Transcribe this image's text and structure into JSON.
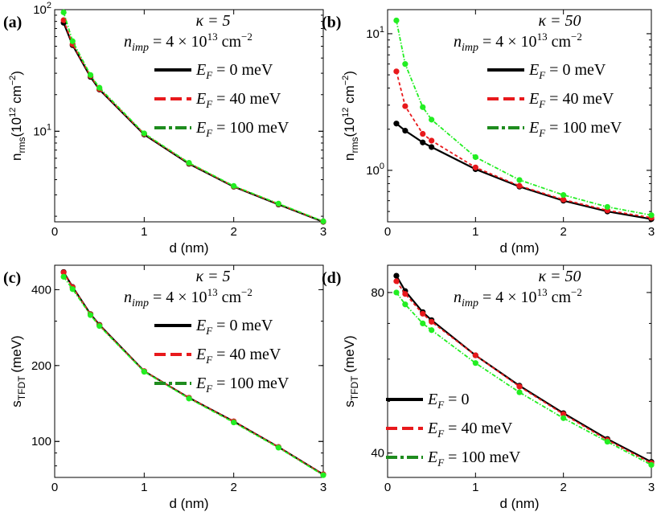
{
  "chart_data": [
    {
      "panel": "(a)",
      "type": "line",
      "kappa": "κ = 5",
      "nimp": "4 × 10",
      "nimp_exp": "13",
      "nimp_unit": "cm",
      "nimp_unit_exp": "−2",
      "xlabel": "d  (nm)",
      "ylabel_main": "n",
      "ylabel_sub": "rms",
      "ylabel_unit": "(10",
      "ylabel_unit_exp": "12",
      "ylabel_unit_rest": " cm",
      "ylabel_unit_exp2": "−2",
      "ylabel_close": ")",
      "yscale": "log",
      "xlim": [
        0,
        3
      ],
      "ylim": [
        1.8,
        100
      ],
      "xticks": [
        "0",
        "1",
        "2",
        "3"
      ],
      "yticks": [
        {
          "v": 10,
          "base": "10",
          "exp": "1"
        },
        {
          "v": 100,
          "base": "10",
          "exp": "2"
        }
      ],
      "legend_position": "right",
      "x": [
        0.1,
        0.2,
        0.4,
        0.5,
        1.0,
        1.5,
        2.0,
        2.5,
        3.0
      ],
      "series": [
        {
          "name": "E_F = 0 meV",
          "label": "= 0 meV",
          "color": "#000000",
          "style": "solid",
          "values": [
            78,
            51,
            28,
            22,
            9.4,
            5.4,
            3.5,
            2.5,
            1.8
          ]
        },
        {
          "name": "E_F = 40 meV",
          "label": "= 40 meV",
          "color": "#e8191c",
          "style": "dashed",
          "values": [
            82,
            52,
            28.5,
            22.2,
            9.5,
            5.45,
            3.52,
            2.52,
            1.81
          ]
        },
        {
          "name": "E_F = 100 meV",
          "label": "= 100 meV",
          "color": "#1e8c1e",
          "style": "dashdot",
          "marker_color": "#22ee22",
          "values": [
            95,
            55,
            29,
            22.8,
            9.6,
            5.5,
            3.55,
            2.54,
            1.82
          ]
        }
      ]
    },
    {
      "panel": "(b)",
      "type": "line",
      "kappa": "κ = 50",
      "nimp": "4 × 10",
      "nimp_exp": "13",
      "nimp_unit": "cm",
      "nimp_unit_exp": "−2",
      "xlabel": "d  (nm)",
      "ylabel_main": "n",
      "ylabel_sub": "rms",
      "ylabel_unit": "(10",
      "ylabel_unit_exp": "12",
      "ylabel_unit_rest": " cm",
      "ylabel_unit_exp2": "−2",
      "ylabel_close": ")",
      "yscale": "log",
      "xlim": [
        0,
        3
      ],
      "ylim": [
        0.42,
        15
      ],
      "xticks": [
        "0",
        "1",
        "2",
        "3"
      ],
      "yticks": [
        {
          "v": 1,
          "base": "10",
          "exp": "0"
        },
        {
          "v": 10,
          "base": "10",
          "exp": "1"
        }
      ],
      "legend_position": "right",
      "x": [
        0.1,
        0.2,
        0.4,
        0.5,
        1.0,
        1.5,
        2.0,
        2.5,
        3.0
      ],
      "series": [
        {
          "name": "E_F = 0 meV",
          "label": "= 0 meV",
          "color": "#000000",
          "style": "solid",
          "values": [
            2.2,
            1.95,
            1.6,
            1.48,
            1.02,
            0.76,
            0.6,
            0.5,
            0.44
          ]
        },
        {
          "name": "E_F = 40 meV",
          "label": "= 40 meV",
          "color": "#e8191c",
          "style": "dashed",
          "values": [
            5.3,
            2.95,
            1.85,
            1.65,
            1.05,
            0.77,
            0.61,
            0.51,
            0.45
          ]
        },
        {
          "name": "E_F = 100 meV",
          "label": "= 100 meV",
          "color": "#1e8c1e",
          "style": "dashdot",
          "marker_color": "#22ee22",
          "values": [
            12.5,
            6.0,
            2.9,
            2.35,
            1.25,
            0.85,
            0.66,
            0.54,
            0.47
          ]
        }
      ]
    },
    {
      "panel": "(c)",
      "type": "line",
      "kappa": "κ = 5",
      "nimp": "4 × 10",
      "nimp_exp": "13",
      "nimp_unit": "cm",
      "nimp_unit_exp": "−2",
      "xlabel": "d  (nm)",
      "ylabel_main": "s",
      "ylabel_sub": "TFDT",
      "ylabel_unit": "(meV)",
      "yscale": "log",
      "xlim": [
        0,
        3
      ],
      "ylim": [
        72,
        500
      ],
      "xticks": [
        "0",
        "1",
        "2",
        "3"
      ],
      "yticks": [
        {
          "v": 100,
          "label": "100"
        },
        {
          "v": 200,
          "label": "200"
        },
        {
          "v": 400,
          "label": "400"
        }
      ],
      "legend_position": "right",
      "x": [
        0.1,
        0.2,
        0.4,
        0.5,
        1.0,
        1.5,
        2.0,
        2.5,
        3.0
      ],
      "series": [
        {
          "name": "E_F = 0 meV",
          "label": "= 0 meV",
          "color": "#000000",
          "style": "solid",
          "values": [
            470,
            410,
            320,
            290,
            190,
            149,
            120,
            95,
            74
          ]
        },
        {
          "name": "E_F = 40 meV",
          "label": "= 40 meV",
          "color": "#e8191c",
          "style": "dashed",
          "values": [
            468,
            409,
            319,
            289,
            190,
            149,
            120,
            95,
            74
          ]
        },
        {
          "name": "E_F = 100 meV",
          "label": "= 100 meV",
          "color": "#1e8c1e",
          "style": "dashdot",
          "marker_color": "#22ee22",
          "values": [
            450,
            402,
            317,
            287,
            189,
            148,
            119,
            94.5,
            73.5
          ]
        }
      ]
    },
    {
      "panel": "(d)",
      "type": "line",
      "kappa": "κ = 50",
      "nimp": "4 × 10",
      "nimp_exp": "13",
      "nimp_unit": "cm",
      "nimp_unit_exp": "−2",
      "xlabel": "d  (nm)",
      "ylabel_main": "s",
      "ylabel_sub": "TFDT",
      "ylabel_unit": "(meV)",
      "yscale": "log",
      "xlim": [
        0,
        3
      ],
      "ylim": [
        36,
        90
      ],
      "xticks": [
        "0",
        "1",
        "2",
        "3"
      ],
      "yticks": [
        {
          "v": 40,
          "label": "40"
        },
        {
          "v": 80,
          "label": "80"
        }
      ],
      "legend_position": "left",
      "x": [
        0.1,
        0.2,
        0.4,
        0.5,
        1.0,
        1.5,
        2.0,
        2.5,
        3.0
      ],
      "series": [
        {
          "name": "E_F = 0",
          "label": "= 0",
          "color": "#000000",
          "style": "solid",
          "values": [
            86,
            80.5,
            73.5,
            71,
            61,
            53.5,
            47.5,
            42.5,
            38.5
          ]
        },
        {
          "name": "E_F = 40 meV",
          "label": "= 40 meV",
          "color": "#e8191c",
          "style": "dashed",
          "values": [
            84,
            79.5,
            73,
            70.5,
            61,
            53.3,
            47.3,
            42.3,
            38.3
          ]
        },
        {
          "name": "E_F = 100 meV",
          "label": "= 100 meV",
          "color": "#1e8c1e",
          "style": "dashdot",
          "marker_color": "#22ee22",
          "values": [
            80,
            76,
            70,
            68,
            59,
            52,
            46.5,
            42,
            38
          ]
        }
      ]
    }
  ]
}
